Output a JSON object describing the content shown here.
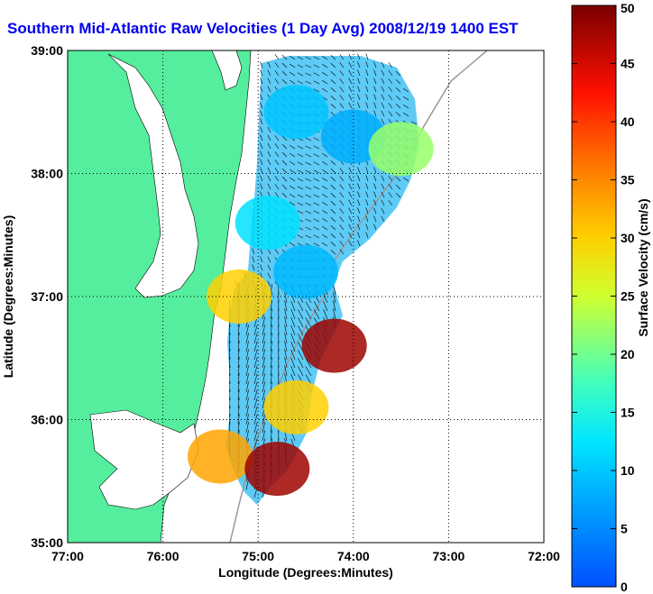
{
  "chart_data": {
    "type": "heatmap",
    "title": "Southern Mid-Atlantic Raw Velocities (1 Day Avg) 2008/12/19 1400 EST",
    "xlabel": "Longitude (Degrees:Minutes)",
    "ylabel": "Latitude (Degrees:Minutes)",
    "x_ticks": [
      "77:00",
      "76:00",
      "75:00",
      "74:00",
      "73:00",
      "72:00"
    ],
    "y_ticks": [
      "39:00",
      "38:00",
      "37:00",
      "36:00",
      "35:00"
    ],
    "xlim": [
      -77,
      -72
    ],
    "ylim": [
      35,
      39
    ],
    "grid": true,
    "colorbar": {
      "label": "Surface Velocity (cm/s)",
      "min": 0,
      "max": 50,
      "ticks": [
        "0",
        "5",
        "10",
        "15",
        "20",
        "25",
        "30",
        "35",
        "40",
        "45",
        "50"
      ]
    },
    "velocity_regions": [
      {
        "lon": -74.6,
        "lat": 38.5,
        "speed": 10
      },
      {
        "lon": -74.0,
        "lat": 38.3,
        "speed": 8
      },
      {
        "lon": -73.5,
        "lat": 38.2,
        "speed": 22
      },
      {
        "lon": -74.9,
        "lat": 37.6,
        "speed": 12
      },
      {
        "lon": -74.5,
        "lat": 37.2,
        "speed": 9
      },
      {
        "lon": -75.2,
        "lat": 37.0,
        "speed": 30
      },
      {
        "lon": -74.2,
        "lat": 36.6,
        "speed": 48
      },
      {
        "lon": -74.6,
        "lat": 36.1,
        "speed": 30
      },
      {
        "lon": -75.4,
        "lat": 35.7,
        "speed": 33
      },
      {
        "lon": -74.8,
        "lat": 35.6,
        "speed": 48
      }
    ]
  }
}
